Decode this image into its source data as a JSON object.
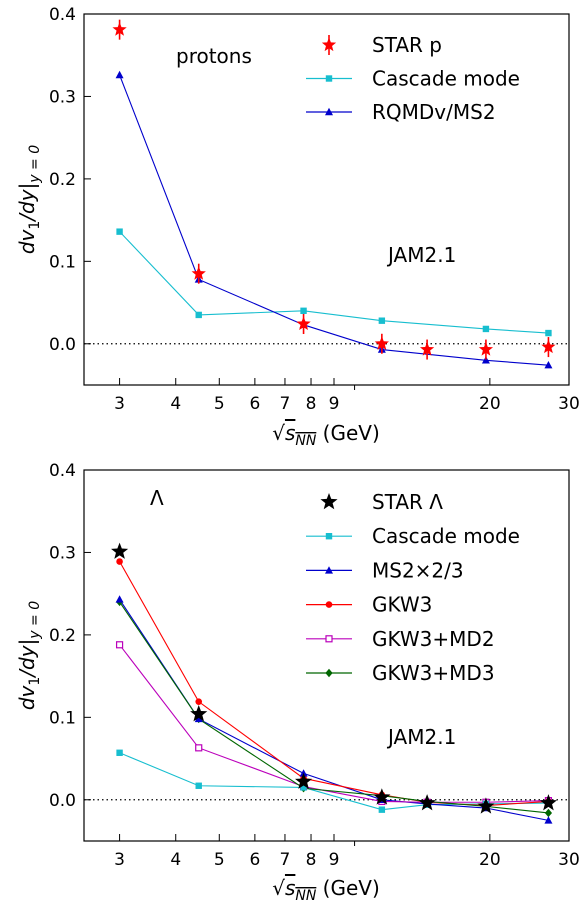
{
  "chart_data": [
    {
      "type": "line",
      "xscale": "log",
      "xlim": [
        2.5,
        30
      ],
      "ylim": [
        -0.05,
        0.4
      ],
      "x_ticks": [
        3,
        4,
        5,
        6,
        7,
        8,
        9,
        20,
        30
      ],
      "y_ticks": [
        0.0,
        0.1,
        0.2,
        0.3,
        0.4
      ],
      "y_tick_labels": [
        "0.0",
        "0.1",
        "0.2",
        "0.3",
        "0.4"
      ],
      "xlabel_main": "√",
      "xlabel_sub": "s",
      "xlabel_subscript": "NN",
      "xlabel_unit": " (GeV)",
      "ylabel_main": "dv",
      "ylabel_sub": "1",
      "ylabel_rest": "/dy|",
      "ylabel_cond": "y = 0",
      "note_species": "protons",
      "note_model": "JAM2.1",
      "reference_line": 0,
      "series": [
        {
          "name": "STAR p",
          "color": "#ff0000",
          "marker": "star-errorbar",
          "line": false,
          "x": [
            3.0,
            4.5,
            7.7,
            11.5,
            14.5,
            19.6,
            27.0
          ],
          "y": [
            0.381,
            0.085,
            0.024,
            0.0,
            -0.007,
            -0.007,
            -0.004
          ]
        },
        {
          "name": "Cascade mode",
          "color": "#17becf",
          "marker": "square",
          "x": [
            3.0,
            4.5,
            7.7,
            11.5,
            19.6,
            27.0
          ],
          "y": [
            0.136,
            0.035,
            0.04,
            0.028,
            0.018,
            0.013
          ]
        },
        {
          "name": "RQMDv/MS2",
          "color": "#0000cc",
          "marker": "triangle",
          "x": [
            3.0,
            4.5,
            7.7,
            11.5,
            19.6,
            27.0
          ],
          "y": [
            0.326,
            0.078,
            0.023,
            -0.007,
            -0.02,
            -0.026
          ]
        }
      ]
    },
    {
      "type": "line",
      "xscale": "log",
      "xlim": [
        2.5,
        30
      ],
      "ylim": [
        -0.05,
        0.4
      ],
      "x_ticks": [
        3,
        4,
        5,
        6,
        7,
        8,
        9,
        20,
        30
      ],
      "y_ticks": [
        0.0,
        0.1,
        0.2,
        0.3,
        0.4
      ],
      "y_tick_labels": [
        "0.0",
        "0.1",
        "0.2",
        "0.3",
        "0.4"
      ],
      "xlabel_main": "√",
      "xlabel_sub": "s",
      "xlabel_subscript": "NN",
      "xlabel_unit": " (GeV)",
      "ylabel_main": "dv",
      "ylabel_sub": "1",
      "ylabel_rest": "/dy|",
      "ylabel_cond": "y = 0",
      "note_species": "Λ",
      "note_model": "JAM2.1",
      "reference_line": 0,
      "series": [
        {
          "name": "STAR Λ",
          "color": "#000000",
          "marker": "star",
          "line": false,
          "x": [
            3.0,
            4.5,
            7.7,
            11.5,
            14.5,
            19.6,
            27.0
          ],
          "y": [
            0.301,
            0.104,
            0.022,
            0.003,
            -0.004,
            -0.008,
            -0.004
          ]
        },
        {
          "name": "Cascade mode",
          "color": "#17becf",
          "marker": "square",
          "x": [
            3.0,
            4.5,
            7.7,
            11.5,
            14.5,
            19.6,
            27.0
          ],
          "y": [
            0.057,
            0.017,
            0.015,
            -0.012,
            -0.006,
            -0.005,
            -0.004
          ]
        },
        {
          "name": "MS2×2/3",
          "color": "#0000cc",
          "marker": "triangle",
          "x": [
            3.0,
            4.5,
            7.7,
            11.5,
            14.5,
            19.6,
            27.0
          ],
          "y": [
            0.243,
            0.098,
            0.032,
            0.0,
            -0.005,
            -0.01,
            -0.025
          ]
        },
        {
          "name": "GKW3",
          "color": "#ff0000",
          "marker": "circle",
          "x": [
            3.0,
            4.5,
            7.7,
            11.5,
            14.5,
            19.6,
            27.0
          ],
          "y": [
            0.289,
            0.119,
            0.026,
            0.006,
            -0.003,
            -0.007,
            -0.002
          ]
        },
        {
          "name": "GKW3+MD2",
          "color": "#bb00bb",
          "marker": "open-square",
          "x": [
            3.0,
            4.5,
            7.7,
            11.5,
            14.5,
            19.6,
            27.0
          ],
          "y": [
            0.188,
            0.063,
            0.016,
            -0.002,
            -0.003,
            -0.003,
            -0.001
          ]
        },
        {
          "name": "GKW3+MD3",
          "color": "#006600",
          "marker": "diamond",
          "x": [
            3.0,
            4.5,
            7.7,
            11.5,
            14.5,
            19.6,
            27.0
          ],
          "y": [
            0.24,
            0.098,
            0.014,
            0.005,
            -0.002,
            -0.008,
            -0.016
          ]
        }
      ]
    }
  ]
}
